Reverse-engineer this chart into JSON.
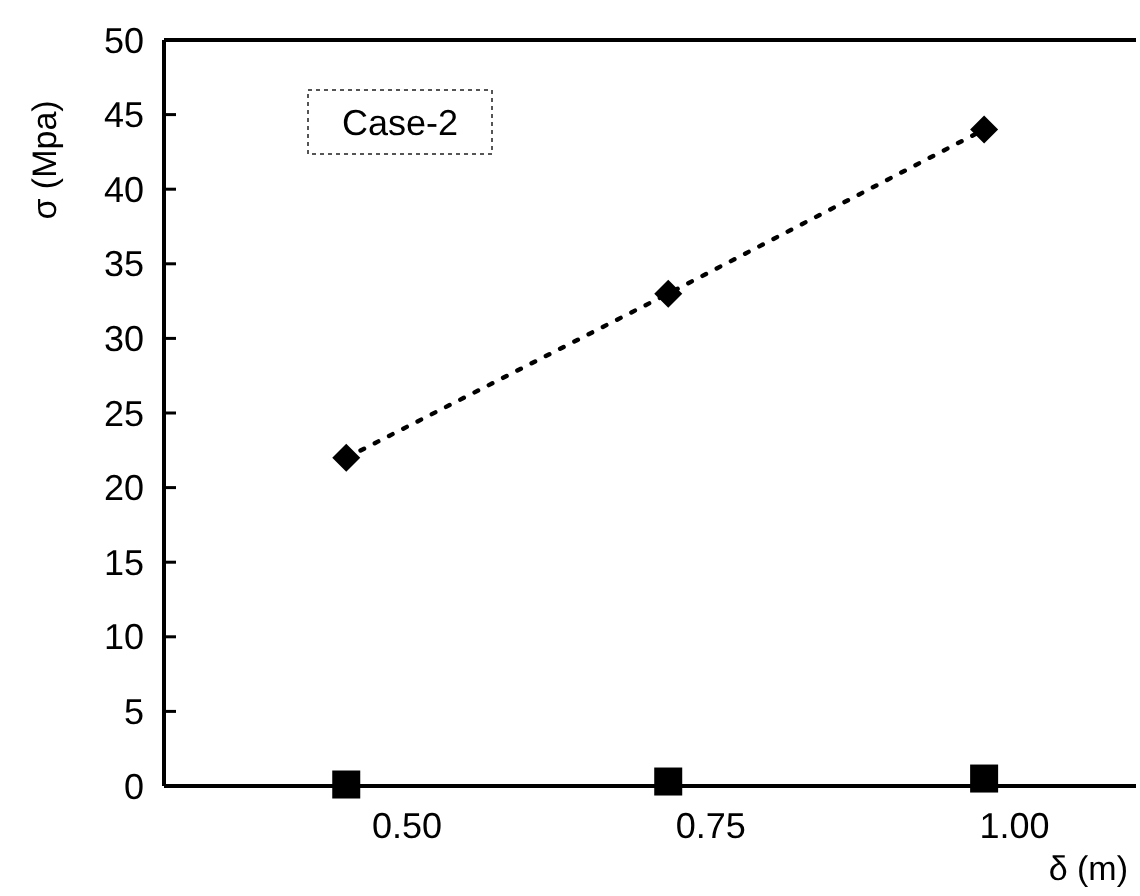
{
  "chart_data": {
    "type": "scatter",
    "xlabel": "δ (m)",
    "ylabel": "σ (Mpa)",
    "annotations": [
      "Case-2"
    ],
    "xlim": [
      0.3,
      1.1
    ],
    "xticks": [
      {
        "value": 0.5,
        "label": "0.50"
      },
      {
        "value": 0.75,
        "label": "0.75"
      },
      {
        "value": 1,
        "label": "1.00"
      }
    ],
    "ylim": [
      0,
      50
    ],
    "yticks": [
      0,
      5,
      10,
      15,
      20,
      25,
      30,
      35,
      40,
      45,
      50
    ],
    "grid": false,
    "series": [
      {
        "type": "line",
        "color": "#000000",
        "marker": "diamond",
        "line_style": "dotted",
        "x": [
          0.45,
          0.715,
          0.975
        ],
        "values": [
          22,
          33,
          44
        ]
      },
      {
        "color": "#000000",
        "marker": "square",
        "x": [
          0.45,
          0.715,
          0.975
        ],
        "values": [
          0.1,
          0.3,
          0.5
        ]
      }
    ]
  }
}
